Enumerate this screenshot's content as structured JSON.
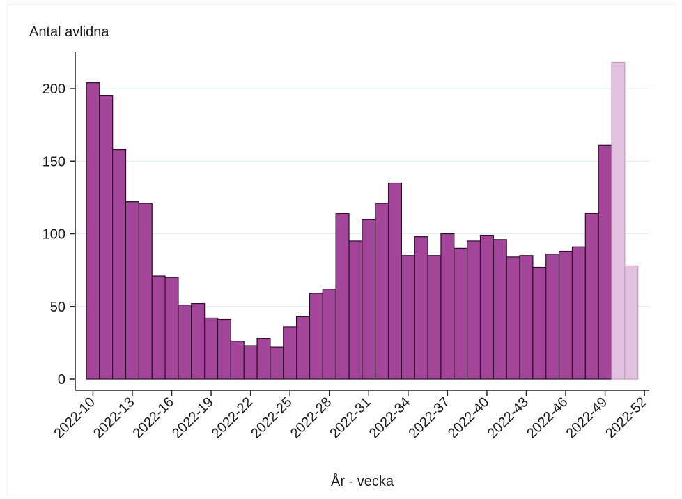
{
  "chart_data": {
    "type": "bar",
    "ylabel": "Antal avlidna",
    "xlabel": "År - vecka",
    "ylim": [
      0,
      225
    ],
    "yticks": [
      0,
      50,
      100,
      150,
      200
    ],
    "grid": true,
    "tick_labels": [
      "2022-10",
      "2022-13",
      "2022-16",
      "2022-19",
      "2022-22",
      "2022-25",
      "2022-28",
      "2022-31",
      "2022-34",
      "2022-37",
      "2022-40",
      "2022-43",
      "2022-46",
      "2022-49",
      "2022-52"
    ],
    "categories": [
      "2022-10",
      "2022-11",
      "2022-12",
      "2022-13",
      "2022-14",
      "2022-15",
      "2022-16",
      "2022-17",
      "2022-18",
      "2022-19",
      "2022-20",
      "2022-21",
      "2022-22",
      "2022-23",
      "2022-24",
      "2022-25",
      "2022-26",
      "2022-27",
      "2022-28",
      "2022-29",
      "2022-30",
      "2022-31",
      "2022-32",
      "2022-33",
      "2022-34",
      "2022-35",
      "2022-36",
      "2022-37",
      "2022-38",
      "2022-39",
      "2022-40",
      "2022-41",
      "2022-42",
      "2022-43",
      "2022-44",
      "2022-45",
      "2022-46",
      "2022-47",
      "2022-48",
      "2022-49",
      "2022-50",
      "2022-51"
    ],
    "values": [
      204,
      195,
      158,
      122,
      121,
      71,
      70,
      51,
      52,
      42,
      41,
      26,
      23,
      28,
      22,
      36,
      43,
      59,
      62,
      114,
      95,
      110,
      121,
      135,
      85,
      98,
      85,
      100,
      90,
      95,
      99,
      96,
      84,
      85,
      77,
      86,
      88,
      91,
      114,
      161,
      218,
      78
    ],
    "preliminary_from_index": 40,
    "colors": {
      "bar": "#a3469a",
      "bar_preliminary": "#e2c3df",
      "bar_edge": "#2a0f28",
      "bar_edge_preliminary": "#c79cc2",
      "grid": "#e6efef",
      "axis": "#222222"
    }
  }
}
